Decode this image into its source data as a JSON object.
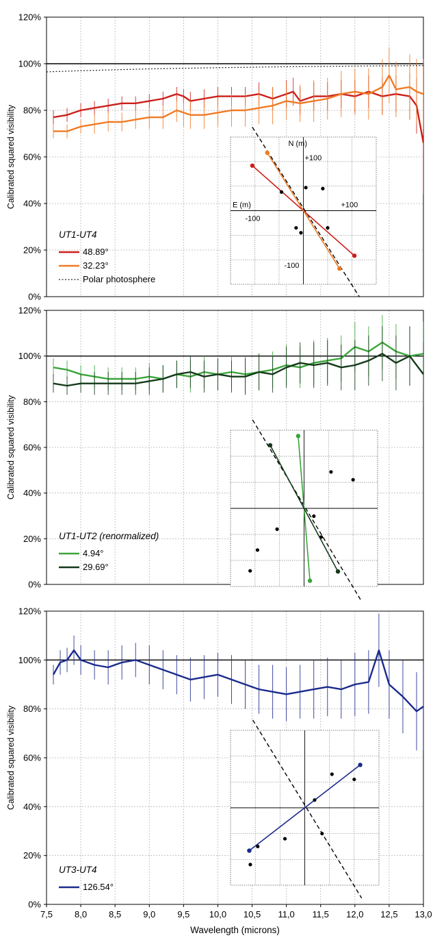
{
  "chart_data": [
    {
      "type": "line",
      "ylabel": "Calibrated squared visibility",
      "ylim": [
        0,
        120
      ],
      "xlim": [
        7.5,
        13.0
      ],
      "y_ticks": [
        "0%",
        "20%",
        "40%",
        "60%",
        "80%",
        "100%",
        "120%"
      ],
      "grid": true,
      "reference_line": 100,
      "legend_title": "UT1-UT4",
      "legend_placement": "bottom-left",
      "series": [
        {
          "name": "48.89°",
          "color": "#cc1f1a",
          "x": [
            7.6,
            7.8,
            8.0,
            8.2,
            8.4,
            8.6,
            8.8,
            9.0,
            9.2,
            9.4,
            9.5,
            9.6,
            9.8,
            10.0,
            10.2,
            10.4,
            10.6,
            10.8,
            11.0,
            11.1,
            11.2,
            11.4,
            11.6,
            11.8,
            12.0,
            12.2,
            12.4,
            12.6,
            12.8,
            12.9,
            13.0
          ],
          "y": [
            77,
            78,
            80,
            81,
            82,
            83,
            83,
            84,
            85,
            87,
            86,
            84,
            85,
            86,
            86,
            86,
            87,
            85,
            87,
            88,
            84,
            86,
            86,
            87,
            86,
            88,
            86,
            87,
            86,
            82,
            66
          ],
          "errors": [
            3,
            3,
            3,
            3,
            3,
            3,
            3,
            3,
            3,
            3,
            3,
            4,
            4,
            4,
            4,
            4,
            5,
            5,
            6,
            6,
            6,
            6,
            6,
            6,
            7,
            7,
            8,
            8,
            10,
            12,
            22
          ]
        },
        {
          "name": "32.23°",
          "color": "#f07a24",
          "x": [
            7.6,
            7.8,
            8.0,
            8.2,
            8.4,
            8.6,
            8.8,
            9.0,
            9.2,
            9.4,
            9.5,
            9.6,
            9.8,
            10.0,
            10.2,
            10.4,
            10.6,
            10.8,
            11.0,
            11.2,
            11.4,
            11.6,
            11.8,
            12.0,
            12.2,
            12.4,
            12.5,
            12.6,
            12.8,
            12.9,
            13.0
          ],
          "y": [
            71,
            71,
            73,
            74,
            75,
            75,
            76,
            77,
            77,
            80,
            79,
            78,
            78,
            79,
            80,
            80,
            81,
            82,
            84,
            83,
            84,
            85,
            87,
            88,
            87,
            90,
            95,
            89,
            90,
            88,
            87
          ],
          "errors": [
            3,
            3,
            3,
            4,
            4,
            4,
            4,
            5,
            5,
            5,
            6,
            6,
            6,
            6,
            7,
            7,
            7,
            8,
            8,
            8,
            9,
            9,
            10,
            10,
            11,
            12,
            12,
            12,
            14,
            14,
            15
          ]
        },
        {
          "name": "Polar photosphere",
          "color": "#222222",
          "dashed": true,
          "x": [
            7.5,
            8.0,
            9.0,
            10.0,
            11.0,
            12.0,
            13.0
          ],
          "y": [
            96.5,
            97,
            97.8,
            98.3,
            98.7,
            99.0,
            99.2
          ]
        }
      ],
      "inset": {
        "labels": {
          "north": "N (m)",
          "east": "E (m)",
          "plus_n": "+100",
          "minus_n": "-100",
          "plus_e": "+100",
          "minus_e": "-100"
        },
        "range": 150,
        "points": [
          [
            -40,
            45
          ],
          [
            -5,
            47
          ],
          [
            45,
            38
          ],
          [
            -50,
            -35
          ],
          [
            5,
            -45
          ],
          [
            15,
            -35
          ]
        ],
        "baselines": [
          {
            "color": "#cc1f1a",
            "angle_deg": 48.89
          },
          {
            "color": "#f07a24",
            "angle_deg": 32.23
          }
        ],
        "dashed_line": true
      }
    },
    {
      "type": "line",
      "ylabel": "Calibrated squared visibility",
      "ylim": [
        0,
        120
      ],
      "xlim": [
        7.5,
        13.0
      ],
      "y_ticks": [
        "0%",
        "20%",
        "40%",
        "60%",
        "80%",
        "100%",
        "120%"
      ],
      "grid": true,
      "reference_line": 100,
      "legend_title": "UT1-UT2  (renormalized)",
      "legend_placement": "bottom-left",
      "series": [
        {
          "name": "4.94°",
          "color": "#3aa53a",
          "x": [
            7.6,
            7.8,
            8.0,
            8.2,
            8.4,
            8.6,
            8.8,
            9.0,
            9.2,
            9.4,
            9.6,
            9.8,
            10.0,
            10.2,
            10.4,
            10.6,
            10.8,
            11.0,
            11.2,
            11.4,
            11.6,
            11.8,
            12.0,
            12.2,
            12.4,
            12.6,
            12.8,
            13.0
          ],
          "y": [
            95,
            94,
            92,
            91,
            90,
            90,
            90,
            91,
            90,
            92,
            91,
            93,
            92,
            93,
            92,
            93,
            94,
            96,
            95,
            97,
            98,
            99,
            104,
            102,
            106,
            102,
            100,
            101
          ],
          "errors": [
            4,
            4,
            4,
            5,
            5,
            5,
            5,
            6,
            6,
            6,
            7,
            7,
            7,
            7,
            8,
            8,
            8,
            9,
            9,
            10,
            10,
            10,
            11,
            11,
            12,
            12,
            13,
            14
          ]
        },
        {
          "name": "29.69°",
          "color": "#14391a",
          "x": [
            7.6,
            7.8,
            8.0,
            8.2,
            8.4,
            8.6,
            8.8,
            9.0,
            9.2,
            9.4,
            9.6,
            9.8,
            10.0,
            10.2,
            10.4,
            10.6,
            10.8,
            11.0,
            11.2,
            11.4,
            11.6,
            11.8,
            12.0,
            12.2,
            12.4,
            12.6,
            12.8,
            13.0
          ],
          "y": [
            88,
            87,
            88,
            88,
            88,
            88,
            88,
            89,
            90,
            92,
            93,
            91,
            92,
            91,
            91,
            93,
            92,
            95,
            97,
            96,
            97,
            95,
            96,
            98,
            101,
            97,
            100,
            92
          ],
          "errors": [
            4,
            4,
            4,
            5,
            5,
            5,
            5,
            6,
            6,
            6,
            7,
            7,
            7,
            7,
            8,
            8,
            8,
            9,
            9,
            10,
            10,
            10,
            11,
            11,
            12,
            12,
            13,
            14
          ]
        }
      ],
      "inset": {
        "range": 150,
        "points": [
          [
            -100,
            55
          ],
          [
            -55,
            70
          ],
          [
            -20,
            -15
          ],
          [
            -35,
            -55
          ],
          [
            55,
            -40
          ],
          [
            95,
            -80
          ],
          [
            110,
            -120
          ]
        ],
        "baselines": [
          {
            "color": "#3aa53a",
            "angle_deg": 4.94
          },
          {
            "color": "#14391a",
            "angle_deg": 29.69
          }
        ],
        "dashed_line": true
      }
    },
    {
      "type": "line",
      "ylabel": "Calibrated squared visibility",
      "xlabel": "Wavelength (microns)",
      "ylim": [
        0,
        120
      ],
      "xlim": [
        7.5,
        13.0
      ],
      "y_ticks": [
        "0%",
        "20%",
        "40%",
        "60%",
        "80%",
        "100%",
        "120%"
      ],
      "x_ticks": [
        "7,5",
        "8,0",
        "8,5",
        "9,0",
        "9,5",
        "10,0",
        "10,5",
        "11,0",
        "11,5",
        "12,0",
        "12,5",
        "13,0"
      ],
      "grid": true,
      "reference_line": 100,
      "legend_title": "UT3-UT4",
      "legend_placement": "bottom-left",
      "series": [
        {
          "name": "126.54°",
          "color": "#1a2a8c",
          "x": [
            7.6,
            7.7,
            7.8,
            7.9,
            8.0,
            8.2,
            8.4,
            8.6,
            8.8,
            9.0,
            9.2,
            9.4,
            9.6,
            9.8,
            10.0,
            10.2,
            10.4,
            10.6,
            10.8,
            11.0,
            11.2,
            11.4,
            11.6,
            11.8,
            12.0,
            12.2,
            12.35,
            12.5,
            12.7,
            12.9,
            13.0
          ],
          "y": [
            94,
            99,
            100,
            104,
            100,
            98,
            97,
            99,
            100,
            98,
            96,
            94,
            92,
            93,
            94,
            92,
            90,
            88,
            87,
            86,
            87,
            88,
            89,
            88,
            90,
            91,
            104,
            90,
            85,
            79,
            81
          ],
          "errors": [
            4,
            5,
            5,
            6,
            6,
            6,
            7,
            7,
            7,
            8,
            8,
            8,
            9,
            9,
            9,
            10,
            10,
            10,
            11,
            11,
            11,
            12,
            12,
            12,
            13,
            13,
            15,
            14,
            15,
            16,
            18
          ]
        }
      ],
      "inset": {
        "range": 150,
        "points": [
          [
            -100,
            55
          ],
          [
            -55,
            65
          ],
          [
            -20,
            15
          ],
          [
            -35,
            -50
          ],
          [
            40,
            -60
          ],
          [
            95,
            -75
          ],
          [
            110,
            -110
          ]
        ],
        "baselines": [
          {
            "color": "#1a2a8c",
            "angle_deg": 126.54
          }
        ],
        "dashed_line": true
      }
    }
  ]
}
